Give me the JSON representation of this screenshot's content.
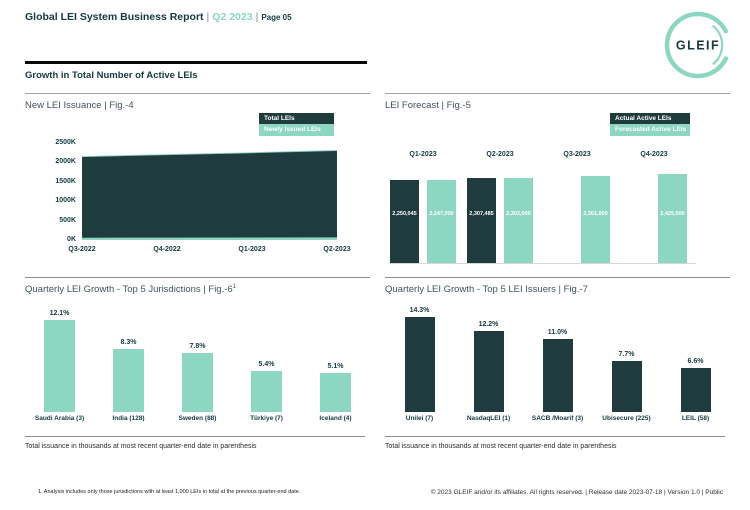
{
  "colors": {
    "dark": "#1f3b3e",
    "mint": "#8dd6c2",
    "dark_text": "#15393e"
  },
  "header": {
    "title": "Global LEI System Business Report",
    "separator": "|",
    "period": "Q2 2023",
    "page": "Page 05",
    "logo_text": "GLEIF",
    "section_heading": "Growth in Total Number of Active LEIs"
  },
  "chart_data": [
    {
      "id": "fig4",
      "type": "area",
      "title": "New LEI Issuance | Fig.-4",
      "legend": [
        {
          "label": "Total LEIs",
          "style": "dark"
        },
        {
          "label": "Newly Issued LEIs",
          "style": "mint"
        }
      ],
      "categories": [
        "Q3-2022",
        "Q4-2022",
        "Q1-2023",
        "Q2-2023"
      ],
      "series": [
        {
          "name": "Total LEIs",
          "style": "dark",
          "values": [
            2150000,
            2200000,
            2250000,
            2307485
          ]
        },
        {
          "name": "Newly Issued LEIs",
          "style": "mint",
          "values": [
            60000,
            62000,
            64000,
            66000
          ]
        }
      ],
      "ylim": [
        0,
        2500000
      ],
      "yticks": [
        "2500K",
        "2000K",
        "1500K",
        "1000K",
        "500K",
        "0K"
      ],
      "grid": false,
      "legend_position": "top-right"
    },
    {
      "id": "fig5",
      "type": "bar",
      "title": "LEI Forecast | Fig.-5",
      "legend": [
        {
          "label": "Actual Active LEIs",
          "style": "dark"
        },
        {
          "label": "Forecasted Active LEIs",
          "style": "mint"
        }
      ],
      "categories": [
        "Q1-2023",
        "Q2-2023",
        "Q3-2023",
        "Q4-2023"
      ],
      "series": [
        {
          "name": "Actual Active LEIs",
          "style": "dark",
          "values": [
            2250045,
            2307485,
            null,
            null
          ],
          "labels": [
            "2,250,045",
            "2,307,485",
            null,
            null
          ]
        },
        {
          "name": "Forecasted Active LEIs",
          "style": "mint",
          "values": [
            2247000,
            2302000,
            2361000,
            2425000
          ],
          "labels": [
            "2,247,000",
            "2,302,000",
            "2,361,000",
            "2,425,000"
          ]
        }
      ],
      "ylim": [
        0,
        2500000
      ],
      "grid": false,
      "legend_position": "top-right"
    },
    {
      "id": "fig6",
      "type": "bar",
      "title": "Quarterly LEI Growth - Top 5 Jurisdictions | Fig.-6",
      "title_sup": "1",
      "categories": [
        "Saudi Arabia (3)",
        "India (128)",
        "Sweden (88)",
        "Türkiye (7)",
        "Iceland (4)"
      ],
      "values": [
        12.1,
        8.3,
        7.8,
        5.4,
        5.1
      ],
      "value_labels": [
        "12.1%",
        "8.3%",
        "7.8%",
        "5.4%",
        "5.1%"
      ],
      "bar_style": "mint",
      "note": "Total issuance in thousands at most recent quarter-end date in parenthesis"
    },
    {
      "id": "fig7",
      "type": "bar",
      "title": "Quarterly LEI Growth - Top 5 LEI Issuers | Fig.-7",
      "categories": [
        "Unilei (7)",
        "NasdaqLEI (1)",
        "SACB /Moarif (3)",
        "Ubisecure (225)",
        "LEIL (58)"
      ],
      "values": [
        14.3,
        12.2,
        11.0,
        7.7,
        6.6
      ],
      "value_labels": [
        "14.3%",
        "12.2%",
        "11.0%",
        "7.7%",
        "6.6%"
      ],
      "bar_style": "dark",
      "note": "Total issuance in thousands at most recent quarter-end date in parenthesis"
    }
  ],
  "footer": {
    "footnote": "1. Analysis includes only those jurisdictions with at least 1,000 LEIs in total at the previous quarter-end date.",
    "copyright": "© 2023 GLEIF and/or its affiliates. All rights reserved. | Release date 2023-07-18 | Version 1.0 | Public"
  }
}
